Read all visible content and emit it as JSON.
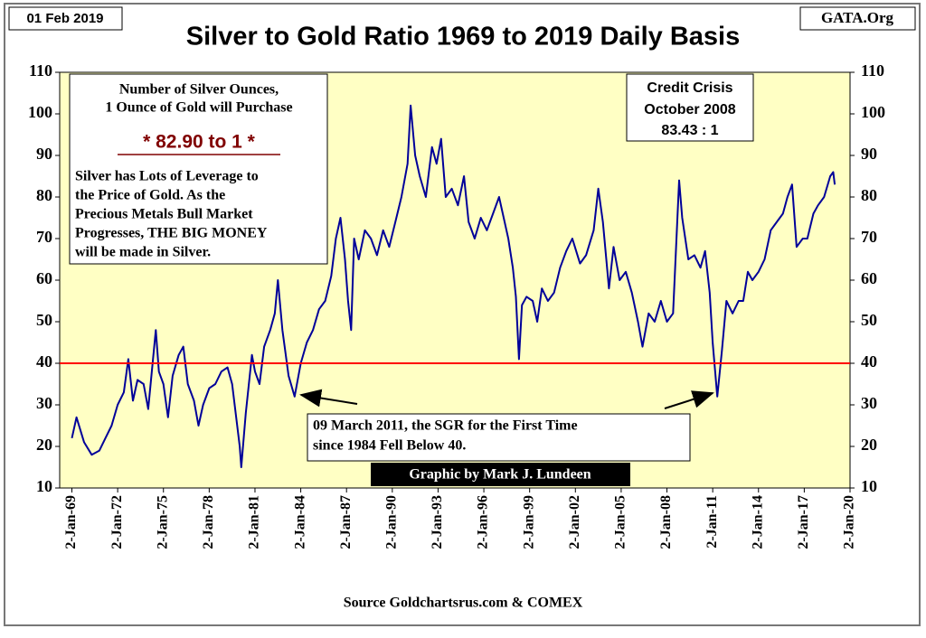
{
  "chart_data": {
    "type": "line",
    "title": "Silver to Gold Ratio 1969 to 2019 Daily Basis",
    "date_label": "01 Feb 2019",
    "site_label": "GATA.Org",
    "source": "Source Goldchartsrus.com & COMEX",
    "credit": "Graphic by Mark J. Lundeen",
    "info_box": {
      "heading": [
        "Number of Silver Ounces,",
        "1 Ounce of Gold will Purchase"
      ],
      "ratio": "* 82.90 to 1 *",
      "text": [
        "Silver has Lots of Leverage to",
        "the Price of Gold.  As the",
        "Precious Metals Bull Market",
        "Progresses,  THE BIG MONEY",
        "will be made in Silver."
      ]
    },
    "crisis_box": [
      "Credit Crisis",
      "October 2008",
      "83.43 : 1"
    ],
    "annotation": [
      "09 March 2011, the SGR for the First Time",
      "since 1984 Fell Below 40."
    ],
    "reference_line": {
      "value": 40,
      "color": "#ff0000"
    },
    "color": "#000099",
    "x": [
      1969.0,
      1969.3,
      1969.8,
      1970.3,
      1970.8,
      1971.2,
      1971.6,
      1972.0,
      1972.4,
      1972.7,
      1973.0,
      1973.3,
      1973.7,
      1974.0,
      1974.5,
      1974.7,
      1975.0,
      1975.3,
      1975.6,
      1976.0,
      1976.3,
      1976.6,
      1977.0,
      1977.3,
      1977.6,
      1978.0,
      1978.4,
      1978.8,
      1979.2,
      1979.5,
      1980.0,
      1980.1,
      1980.4,
      1980.8,
      1981.0,
      1981.3,
      1981.6,
      1982.0,
      1982.3,
      1982.5,
      1982.8,
      1983.2,
      1983.6,
      1984.0,
      1984.4,
      1984.8,
      1985.2,
      1985.6,
      1986.0,
      1986.3,
      1986.6,
      1986.9,
      1987.1,
      1987.3,
      1987.5,
      1987.8,
      1988.2,
      1988.6,
      1989.0,
      1989.4,
      1989.8,
      1990.2,
      1990.6,
      1991.0,
      1991.2,
      1991.5,
      1991.8,
      1992.2,
      1992.6,
      1992.9,
      1993.2,
      1993.5,
      1993.9,
      1994.3,
      1994.7,
      1995.0,
      1995.4,
      1995.8,
      1996.2,
      1996.6,
      1997.0,
      1997.3,
      1997.6,
      1997.9,
      1998.1,
      1998.3,
      1998.5,
      1998.8,
      1999.2,
      1999.5,
      1999.8,
      2000.2,
      2000.6,
      2001.0,
      2001.4,
      2001.8,
      2002.3,
      2002.7,
      2003.2,
      2003.5,
      2003.8,
      2004.2,
      2004.5,
      2004.9,
      2005.3,
      2005.7,
      2006.1,
      2006.4,
      2006.8,
      2007.2,
      2007.6,
      2008.0,
      2008.4,
      2008.8,
      2009.0,
      2009.4,
      2009.8,
      2010.2,
      2010.5,
      2010.8,
      2011.0,
      2011.3,
      2011.6,
      2011.9,
      2012.3,
      2012.7,
      2013.0,
      2013.3,
      2013.6,
      2014.0,
      2014.4,
      2014.8,
      2015.2,
      2015.6,
      2015.9,
      2016.2,
      2016.5,
      2016.9,
      2017.2,
      2017.6,
      2017.9,
      2018.3,
      2018.7,
      2018.9,
      2019.0
    ],
    "values": [
      22,
      27,
      21,
      18,
      19,
      22,
      25,
      30,
      33,
      41,
      31,
      36,
      35,
      29,
      48,
      38,
      35,
      27,
      37,
      42,
      44,
      35,
      31,
      25,
      30,
      34,
      35,
      38,
      39,
      35,
      20,
      15,
      28,
      42,
      38,
      35,
      44,
      48,
      52,
      60,
      48,
      37,
      32,
      40,
      45,
      48,
      53,
      55,
      61,
      70,
      75,
      65,
      55,
      48,
      70,
      65,
      72,
      70,
      66,
      72,
      68,
      74,
      80,
      88,
      102,
      90,
      85,
      80,
      92,
      88,
      94,
      80,
      82,
      78,
      85,
      74,
      70,
      75,
      72,
      76,
      80,
      75,
      70,
      63,
      56,
      41,
      54,
      56,
      55,
      50,
      58,
      55,
      57,
      63,
      67,
      70,
      64,
      66,
      72,
      82,
      74,
      58,
      68,
      60,
      62,
      57,
      50,
      44,
      52,
      50,
      55,
      50,
      52,
      84,
      75,
      65,
      66,
      63,
      67,
      57,
      45,
      32,
      43,
      55,
      52,
      55,
      55,
      62,
      60,
      62,
      65,
      72,
      74,
      76,
      80,
      83,
      68,
      70,
      70,
      76,
      78,
      80,
      85,
      86,
      83
    ],
    "xlim": [
      1968.2,
      2020
    ],
    "xticks": [
      {
        "value": 1969,
        "label": "2-Jan-69"
      },
      {
        "value": 1972,
        "label": "2-Jan-72"
      },
      {
        "value": 1975,
        "label": "2-Jan-75"
      },
      {
        "value": 1978,
        "label": "2-Jan-78"
      },
      {
        "value": 1981,
        "label": "2-Jan-81"
      },
      {
        "value": 1984,
        "label": "2-Jan-84"
      },
      {
        "value": 1987,
        "label": "2-Jan-87"
      },
      {
        "value": 1990,
        "label": "2-Jan-90"
      },
      {
        "value": 1993,
        "label": "2-Jan-93"
      },
      {
        "value": 1996,
        "label": "2-Jan-96"
      },
      {
        "value": 1999,
        "label": "2-Jan-99"
      },
      {
        "value": 2002,
        "label": "2-Jan-02"
      },
      {
        "value": 2005,
        "label": "2-Jan-05"
      },
      {
        "value": 2008,
        "label": "2-Jan-08"
      },
      {
        "value": 2011,
        "label": "2-Jan-11"
      },
      {
        "value": 2014,
        "label": "2-Jan-14"
      },
      {
        "value": 2017,
        "label": "2-Jan-17"
      },
      {
        "value": 2020,
        "label": "2-Jan-20"
      }
    ],
    "ylim": [
      10,
      110
    ],
    "yticks": [
      10,
      20,
      30,
      40,
      50,
      60,
      70,
      80,
      90,
      100,
      110
    ],
    "y2lim": [
      10,
      110
    ],
    "y2ticks": [
      10,
      20,
      30,
      40,
      50,
      60,
      70,
      80,
      90,
      100,
      110
    ]
  }
}
